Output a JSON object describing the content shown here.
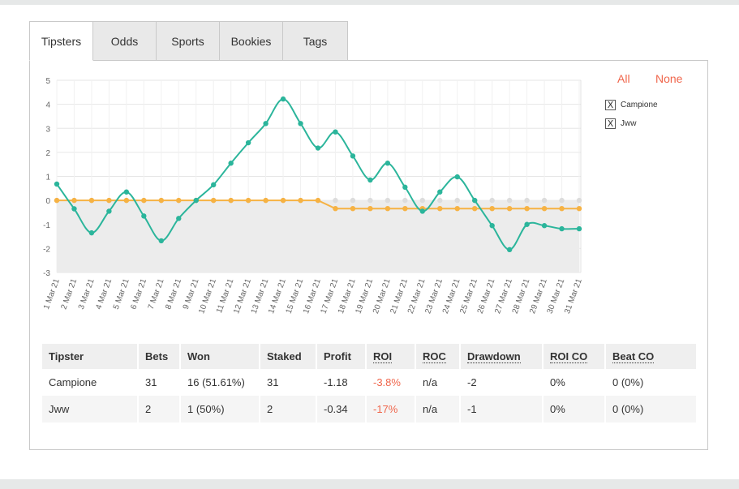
{
  "tabs": [
    {
      "label": "Tipsters",
      "active": true
    },
    {
      "label": "Odds",
      "active": false
    },
    {
      "label": "Sports",
      "active": false
    },
    {
      "label": "Bookies",
      "active": false
    },
    {
      "label": "Tags",
      "active": false
    }
  ],
  "legend": {
    "all_label": "All",
    "none_label": "None",
    "items": [
      {
        "label": "Campione",
        "checked_mark": "X"
      },
      {
        "label": "Jww",
        "checked_mark": "X"
      }
    ]
  },
  "colors": {
    "campione": "#2bb59b",
    "jww": "#f6b243",
    "accent": "#f0664c",
    "fill": "#ececec"
  },
  "chart_data": {
    "type": "line",
    "x": [
      "1 Mar 21",
      "2 Mar 21",
      "3 Mar 21",
      "4 Mar 21",
      "5 Mar 21",
      "6 Mar 21",
      "7 Mar 21",
      "8 Mar 21",
      "9 Mar 21",
      "10 Mar 21",
      "11 Mar 21",
      "12 Mar 21",
      "13 Mar 21",
      "14 Mar 21",
      "15 Mar 21",
      "16 Mar 21",
      "17 Mar 21",
      "18 Mar 21",
      "19 Mar 21",
      "20 Mar 21",
      "21 Mar 21",
      "22 Mar 21",
      "23 Mar 21",
      "24 Mar 21",
      "25 Mar 21",
      "26 Mar 21",
      "27 Mar 21",
      "28 Mar 21",
      "29 Mar 21",
      "30 Mar 21",
      "31 Mar 21"
    ],
    "ylim": [
      -3,
      5
    ],
    "yticks": [
      5,
      4,
      3,
      2,
      1,
      0,
      -1,
      -2,
      -3
    ],
    "grid": true,
    "series": [
      {
        "name": "Campione",
        "values": [
          0.68,
          -0.35,
          -1.35,
          -0.45,
          0.35,
          -0.65,
          -1.68,
          -0.75,
          0.0,
          0.65,
          1.55,
          2.4,
          3.2,
          4.22,
          3.2,
          2.18,
          2.85,
          1.85,
          0.85,
          1.55,
          0.55,
          -0.45,
          0.35,
          0.98,
          0.0,
          -1.05,
          -2.05,
          -1.0,
          -1.05,
          -1.18,
          -1.18
        ]
      },
      {
        "name": "Jww",
        "values": [
          0,
          0,
          0,
          0,
          0,
          0,
          0,
          0,
          0,
          0,
          0,
          0,
          0,
          0,
          0,
          0,
          -0.34,
          -0.34,
          -0.34,
          -0.34,
          -0.34,
          -0.34,
          -0.34,
          -0.34,
          -0.34,
          -0.34,
          -0.34,
          -0.34,
          -0.34,
          -0.34,
          -0.34
        ]
      }
    ]
  },
  "table": {
    "headers": [
      "Tipster",
      "Bets",
      "Won",
      "Staked",
      "Profit",
      "ROI",
      "ROC",
      "Drawdown",
      "ROI CO",
      "Beat CO"
    ],
    "rows": [
      [
        "Campione",
        "31",
        "16 (51.61%)",
        "31",
        "-1.18",
        "-3.8%",
        "n/a",
        "-2",
        "0%",
        "0 (0%)"
      ],
      [
        "Jww",
        "2",
        "1 (50%)",
        "2",
        "-0.34",
        "-17%",
        "n/a",
        "-1",
        "0%",
        "0 (0%)"
      ]
    ]
  }
}
